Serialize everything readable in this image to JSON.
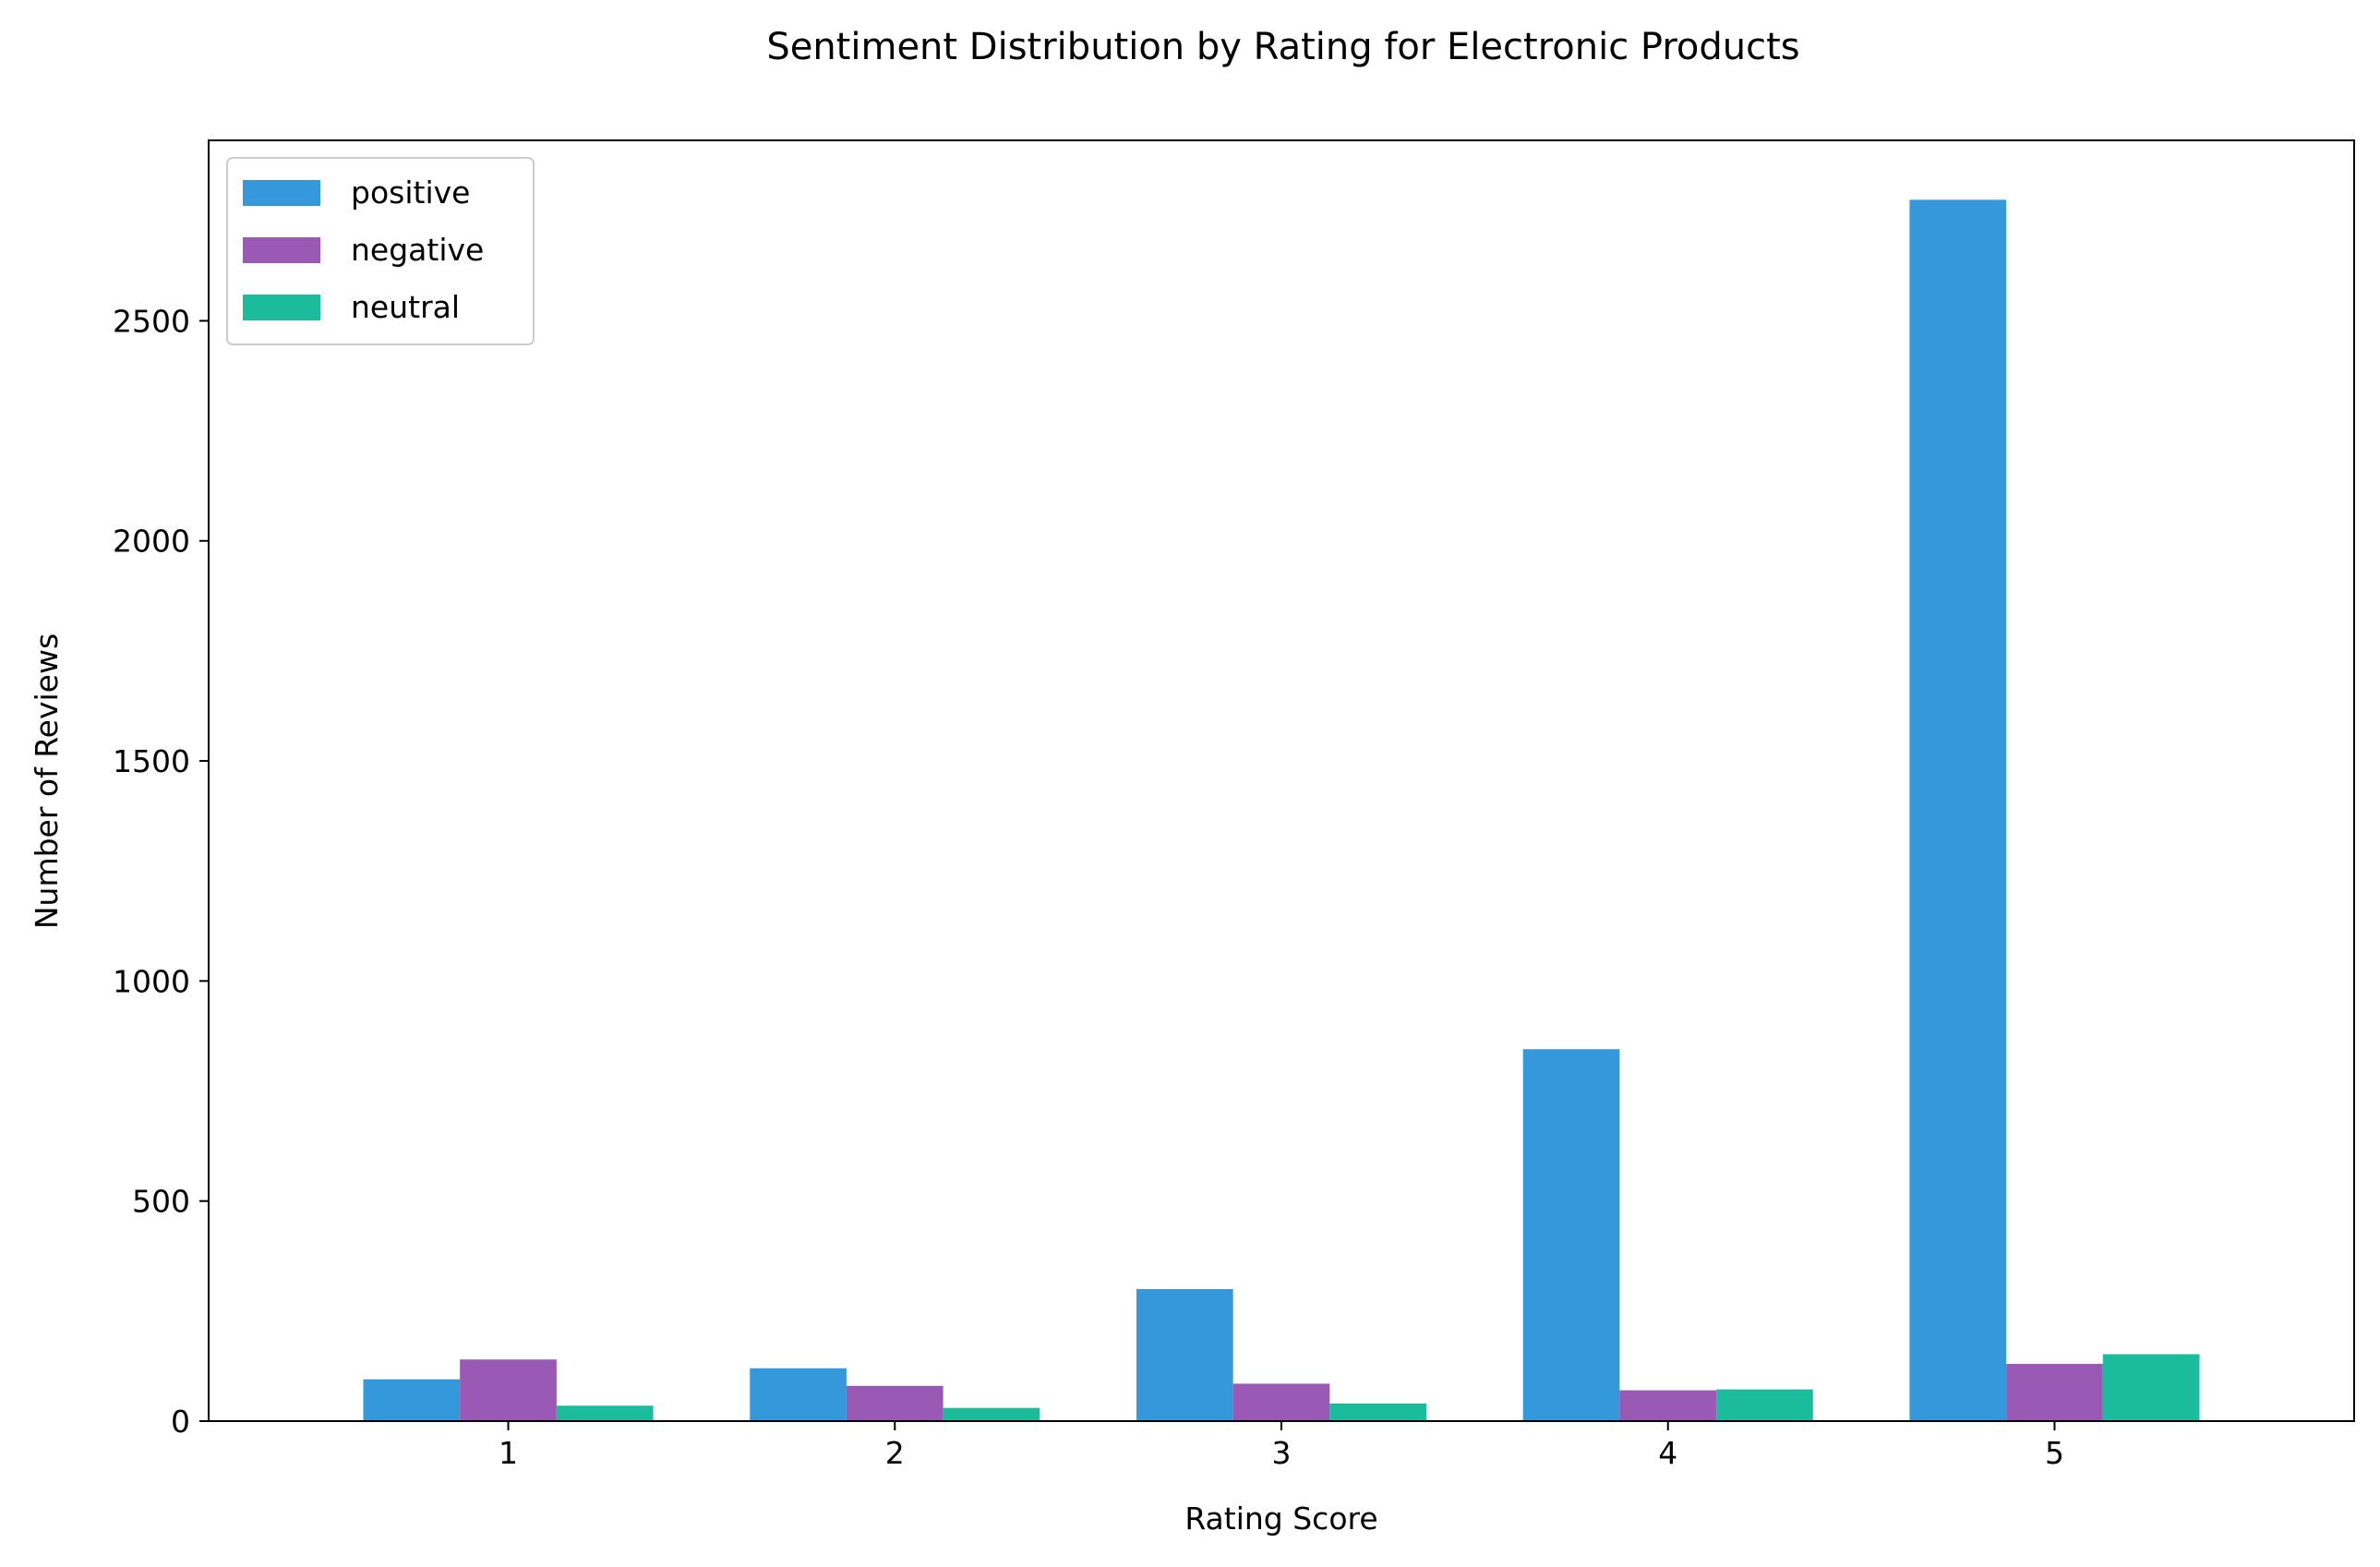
{
  "chart_data": {
    "type": "bar",
    "title": "Sentiment Distribution by Rating for Electronic Products",
    "xlabel": "Rating Score",
    "ylabel": "Number of Reviews",
    "categories": [
      "1",
      "2",
      "3",
      "4",
      "5"
    ],
    "ylim": [
      0,
      2910
    ],
    "yticks": [
      0,
      500,
      1000,
      1500,
      2000,
      2500
    ],
    "grid": false,
    "legend_position": "upper-left",
    "series": [
      {
        "name": "positive",
        "color": "#3498db",
        "values": [
          95,
          120,
          300,
          845,
          2775
        ]
      },
      {
        "name": "negative",
        "color": "#9b59b6",
        "values": [
          140,
          80,
          85,
          70,
          130
        ]
      },
      {
        "name": "neutral",
        "color": "#1abc9c",
        "values": [
          35,
          30,
          40,
          72,
          152
        ]
      }
    ]
  }
}
